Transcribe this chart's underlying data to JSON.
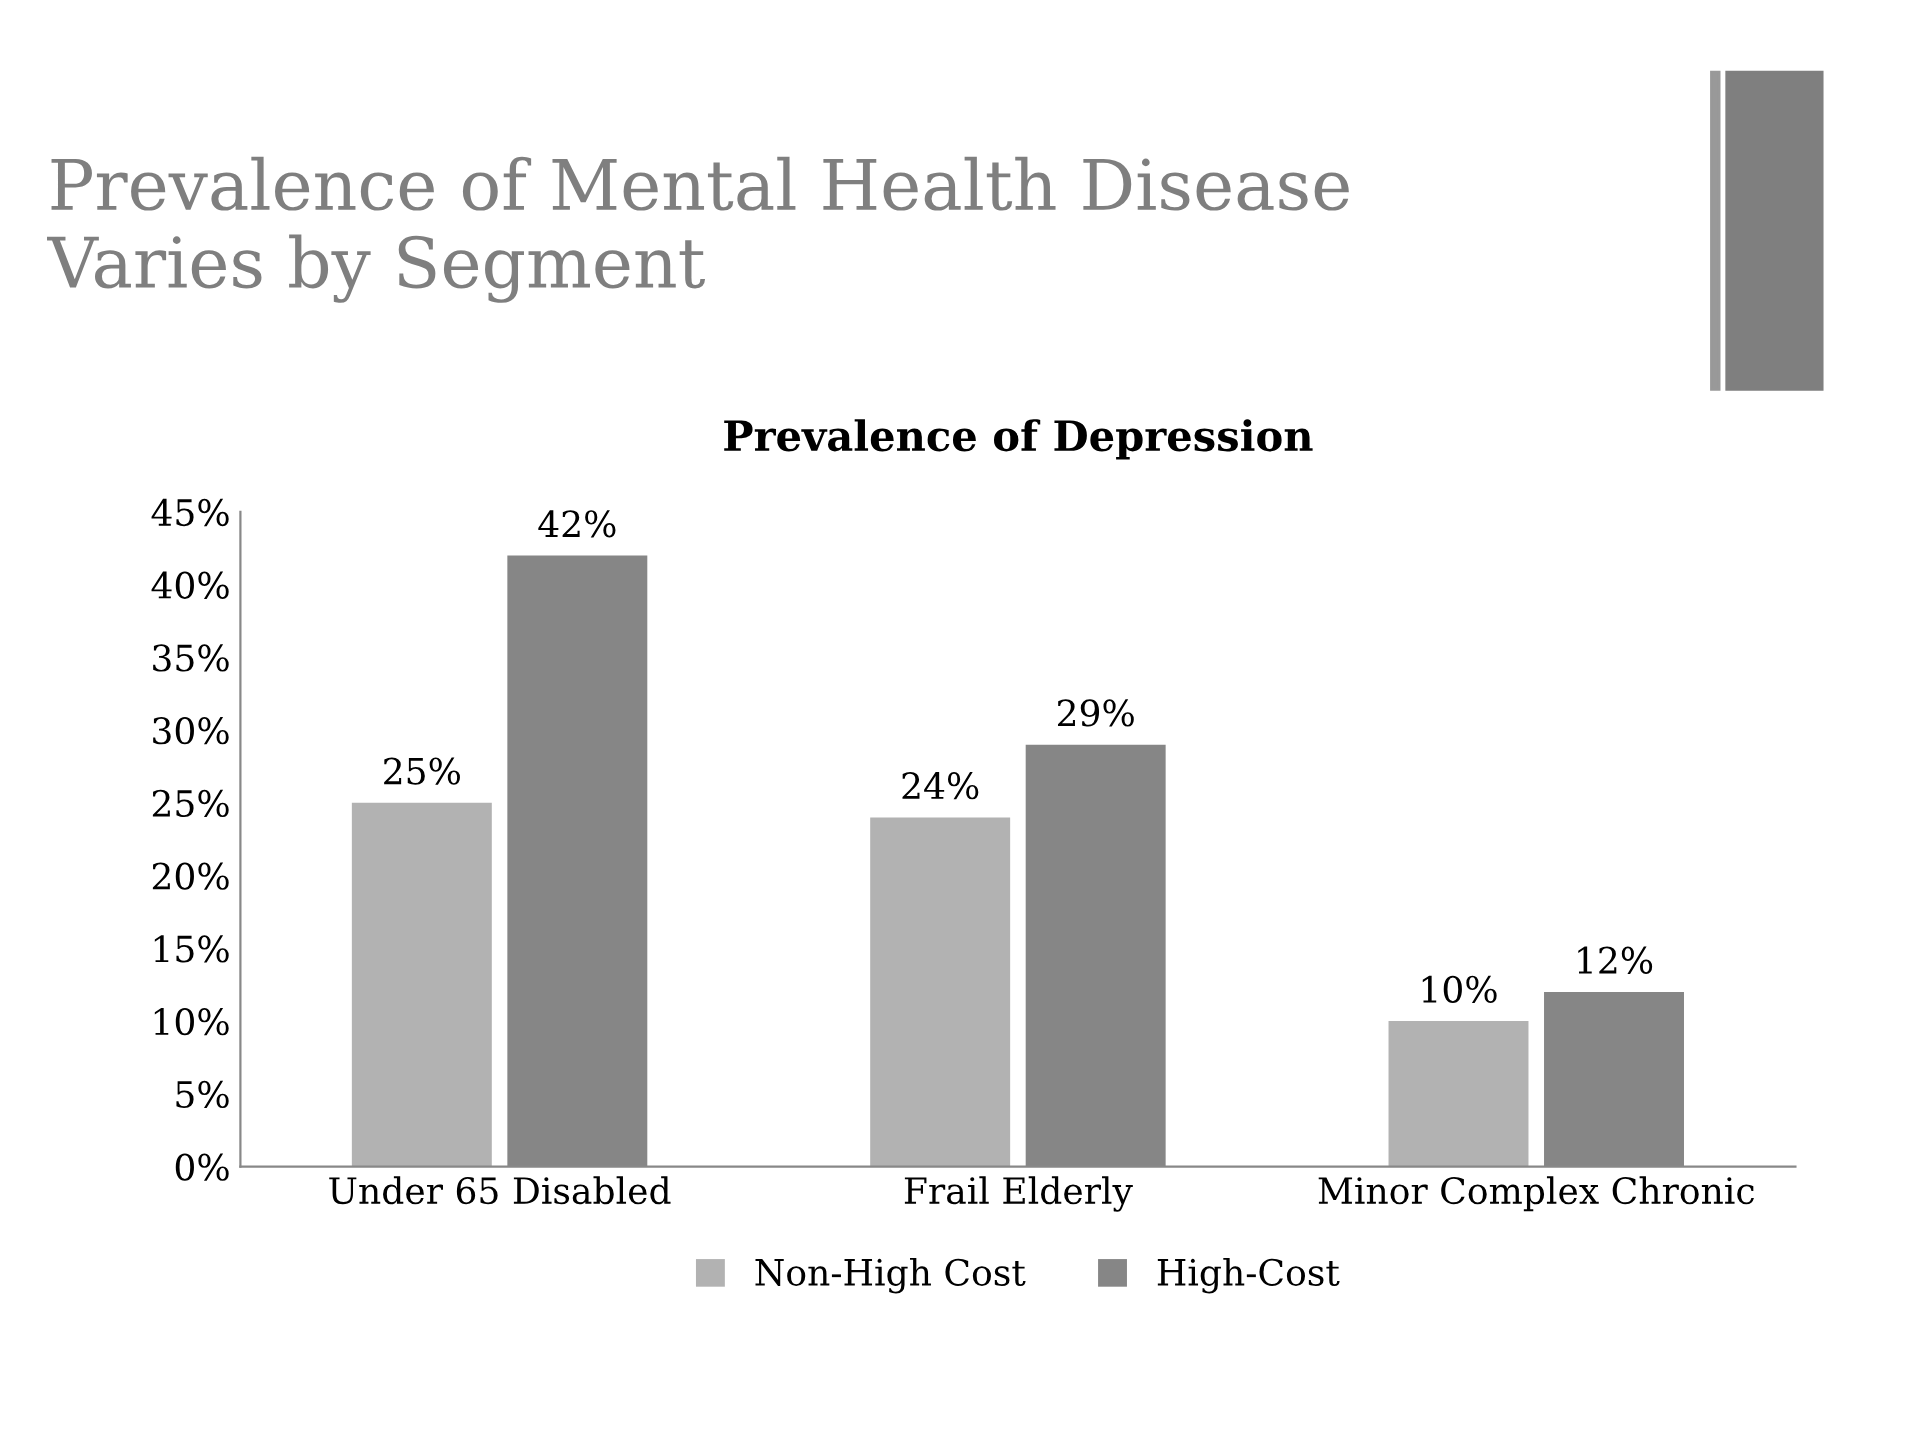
{
  "chart_data": {
    "type": "bar",
    "title": "Prevalence of Mental Health Disease Varies by Segment",
    "subtitle": "Prevalence of Depression",
    "categories": [
      "Under 65 Disabled",
      "Frail Elderly",
      "Minor Complex Chronic"
    ],
    "series": [
      {
        "name": "Non-High Cost",
        "color": "#b2b2b2",
        "values": [
          25,
          24,
          10
        ]
      },
      {
        "name": "High-Cost",
        "color": "#868686",
        "values": [
          42,
          29,
          12
        ]
      }
    ],
    "value_labels": [
      [
        "25%",
        "24%",
        "10%"
      ],
      [
        "42%",
        "29%",
        "12%"
      ]
    ],
    "ylim": [
      0,
      45
    ],
    "yticks": [
      {
        "value": 0,
        "label": "0%"
      },
      {
        "value": 5,
        "label": "5%"
      },
      {
        "value": 10,
        "label": "10%"
      },
      {
        "value": 15,
        "label": "15%"
      },
      {
        "value": 20,
        "label": "20%"
      },
      {
        "value": 25,
        "label": "25%"
      },
      {
        "value": 30,
        "label": "30%"
      },
      {
        "value": 35,
        "label": "35%"
      },
      {
        "value": 40,
        "label": "40%"
      },
      {
        "value": 45,
        "label": "45%"
      }
    ],
    "grid": false,
    "legend": "bottom"
  }
}
